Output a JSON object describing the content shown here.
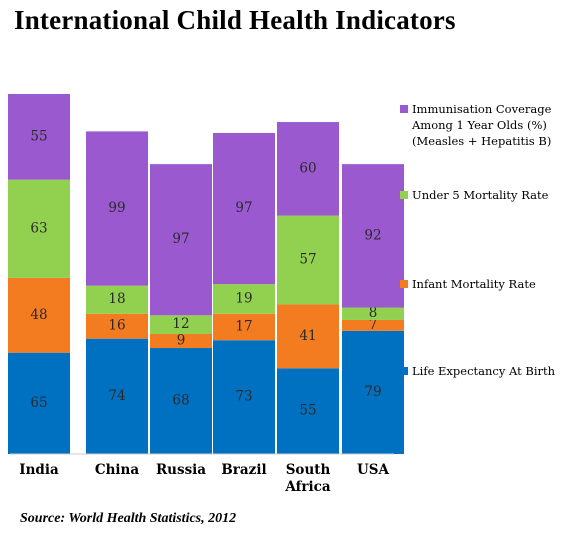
{
  "title": "International Child Health Indicators",
  "source": "Source: World Health Statistics, 2012",
  "chart_data": {
    "type": "bar",
    "stacked": true,
    "categories": [
      "India",
      "China",
      "Russia",
      "Brazil",
      "South Africa",
      "USA"
    ],
    "series": [
      {
        "name": "Life Expectancy At Birth",
        "color": "#0070c0",
        "values": [
          65,
          74,
          68,
          73,
          55,
          79
        ]
      },
      {
        "name": "Infant Mortality Rate",
        "color": "#f47c20",
        "values": [
          48,
          16,
          9,
          17,
          41,
          7
        ]
      },
      {
        "name": "Under 5 Mortality Rate",
        "color": "#92d050",
        "values": [
          63,
          18,
          12,
          19,
          57,
          8
        ]
      },
      {
        "name": "Immunisation Coverage Among 1 Year Olds (%)  (Measles + Hepatitis B)",
        "color": "#9b59d0",
        "values": [
          55,
          99,
          97,
          97,
          60,
          92
        ]
      }
    ],
    "legend_order": [
      3,
      2,
      1,
      0
    ],
    "ylim": [
      0,
      231
    ],
    "grid": false,
    "axes_visible": false,
    "legend_position": "right"
  }
}
